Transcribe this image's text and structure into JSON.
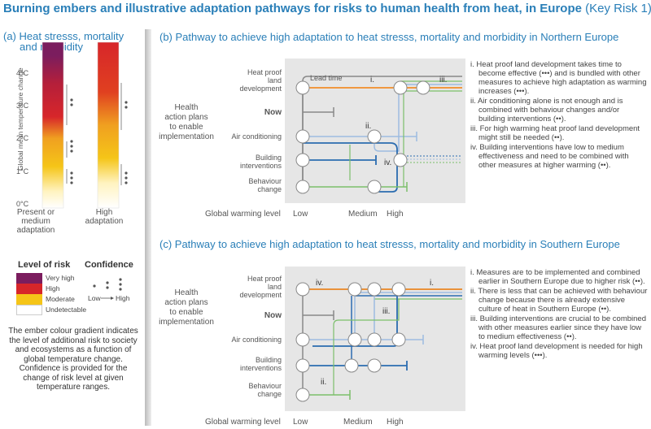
{
  "title": {
    "main": "Burning embers and illustrative adaptation pathways for risks to human health from heat, in Europe",
    "key_risk": "(Key Risk 1)"
  },
  "panel_a": {
    "title_line1": "(a) Heat stresss, mortality",
    "title_line2": "and morbidity",
    "y_axis_label": "Global mean temperature change",
    "y_ticks": [
      "4°C",
      "3°C",
      "2°C",
      "1°C",
      "0°C"
    ],
    "col1_line1": "Present or",
    "col1_line2": "medium",
    "col1_line3": "adaptation",
    "col2_line1": "High",
    "col2_line2": "adaptation"
  },
  "legend": {
    "level_title": "Level of risk",
    "confidence_title": "Confidence",
    "items": [
      "Very high",
      "High",
      "Moderate",
      "Undetectable"
    ],
    "colors": [
      "#7b1d5e",
      "#d7262a",
      "#f5c518",
      "#ffffff"
    ],
    "low": "Low",
    "high": "High",
    "explanation": "The ember colour gradient indicates the level of additional risk to society and ecosystems as a function of global temperature change. Confidence is provided for the change of risk level at given temperature ranges."
  },
  "panel_b": {
    "title": "(b) Pathway to achieve high adaptation to heat stresss, mortality and morbidity in Northern Europe",
    "lead_time": "Lead time",
    "markers": [
      "i.",
      "ii.",
      "iii.",
      "iv."
    ],
    "notes": [
      "i. Heat proof land development takes time to become effective (•••) and is bundled with other measures to achieve high adaptation as warming increases (•••).",
      "ii. Air conditioning alone is not enough and is combined with behaviour changes and/or building interventions (••).",
      "iii. For high warming heat proof land development might still be needed (••).",
      "iv. Building interventions have low to medium effectiveness and need to be combined with other measures at higher warming (••)."
    ]
  },
  "panel_c": {
    "title": "(c) Pathway to achieve high adaptation to heat stresss, mortality and morbidity in Southern Europe",
    "markers": [
      "i.",
      "ii.",
      "iii.",
      "iv."
    ],
    "notes": [
      "i.  Measures are to be implemented and combined earlier in Southern Europe due to higher risk (••).",
      "ii. There is less that can be achieved with behaviour change because there is already extensive culture of heat in Southern Europe (••).",
      "iii. Building interventions are crucial to be combined with other measures earlier since they have low to medium effectiveness (••).",
      "iv. Heat proof land development is needed for high warming levels (•••)."
    ]
  },
  "common": {
    "health_plans_line1": "Health",
    "health_plans_line2": "action plans",
    "health_plans_line3": "to enable",
    "health_plans_line4": "implementation",
    "now": "Now",
    "heat_proof_line1": "Heat proof",
    "heat_proof_line2": "land",
    "heat_proof_line3": "development",
    "air_conditioning": "Air conditioning",
    "building_line1": "Building",
    "building_line2": "interventions",
    "behaviour_line1": "Behaviour",
    "behaviour_line2": "change",
    "gwl": "Global warming level",
    "low": "Low",
    "medium": "Medium",
    "high": "High"
  },
  "colors": {
    "orange": "#f28c28",
    "lightblue": "#9dbce0",
    "blue": "#2b6cb0",
    "green": "#7bbf6a",
    "grey": "#888888",
    "title_blue": "#2a7fb8"
  }
}
